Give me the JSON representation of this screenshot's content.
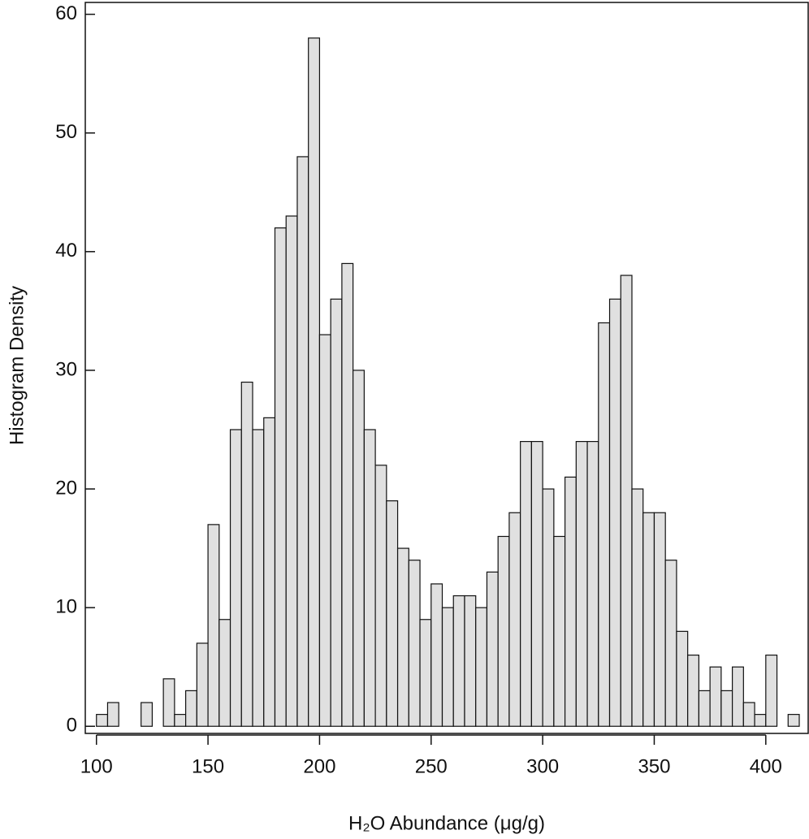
{
  "chart_data": {
    "type": "histogram",
    "xlabel": "H₂O Abundance (μg/g)",
    "ylabel": "Histogram Density",
    "bins": [
      100,
      105,
      110,
      115,
      120,
      125,
      130,
      135,
      140,
      145,
      150,
      155,
      160,
      165,
      170,
      175,
      180,
      185,
      190,
      195,
      200,
      205,
      210,
      215,
      220,
      225,
      230,
      235,
      240,
      245,
      250,
      255,
      260,
      265,
      270,
      275,
      280,
      285,
      290,
      295,
      300,
      305,
      310,
      315,
      320,
      325,
      330,
      335,
      340,
      345,
      350,
      355,
      360,
      365,
      370,
      375,
      380,
      385,
      390,
      395,
      400,
      405,
      410,
      415
    ],
    "values": [
      1,
      2,
      0,
      0,
      2,
      0,
      4,
      1,
      3,
      7,
      17,
      9,
      25,
      29,
      25,
      26,
      42,
      43,
      48,
      58,
      33,
      36,
      39,
      30,
      25,
      22,
      19,
      15,
      14,
      9,
      12,
      10,
      11,
      11,
      10,
      13,
      16,
      18,
      24,
      24,
      20,
      16,
      21,
      24,
      24,
      34,
      36,
      38,
      20,
      18,
      18,
      14,
      8,
      6,
      3,
      5,
      3,
      5,
      2,
      1,
      6,
      0,
      1
    ],
    "color": "#e0e0e0",
    "xlim": [
      95,
      419
    ],
    "ylim": [
      -0.6,
      61
    ],
    "xticks": [
      100,
      150,
      200,
      250,
      300,
      350,
      400
    ],
    "yticks": [
      0,
      10,
      20,
      30,
      40,
      50,
      60
    ]
  }
}
